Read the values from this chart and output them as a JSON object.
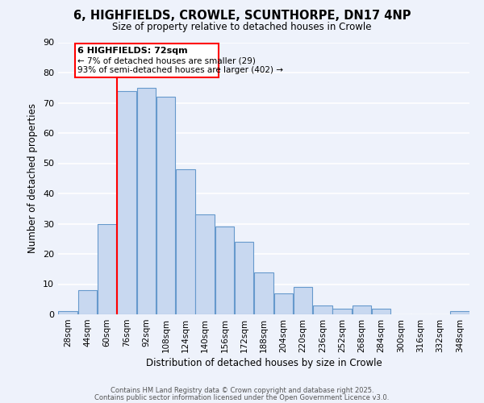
{
  "title_line1": "6, HIGHFIELDS, CROWLE, SCUNTHORPE, DN17 4NP",
  "title_line2": "Size of property relative to detached houses in Crowle",
  "xlabel": "Distribution of detached houses by size in Crowle",
  "ylabel": "Number of detached properties",
  "bar_color": "#c8d8f0",
  "bar_edgecolor": "#6699cc",
  "categories": [
    "28sqm",
    "44sqm",
    "60sqm",
    "76sqm",
    "92sqm",
    "108sqm",
    "124sqm",
    "140sqm",
    "156sqm",
    "172sqm",
    "188sqm",
    "204sqm",
    "220sqm",
    "236sqm",
    "252sqm",
    "268sqm",
    "284sqm",
    "300sqm",
    "316sqm",
    "332sqm",
    "348sqm"
  ],
  "values": [
    1,
    8,
    30,
    74,
    75,
    72,
    48,
    33,
    29,
    24,
    14,
    7,
    9,
    3,
    2,
    3,
    2,
    0,
    0,
    0,
    1
  ],
  "ylim": [
    0,
    90
  ],
  "yticks": [
    0,
    10,
    20,
    30,
    40,
    50,
    60,
    70,
    80,
    90
  ],
  "annotation_line1": "6 HIGHFIELDS: 72sqm",
  "annotation_line2": "← 7% of detached houses are smaller (29)",
  "annotation_line3": "93% of semi-detached houses are larger (402) →",
  "footer_line1": "Contains HM Land Registry data © Crown copyright and database right 2025.",
  "footer_line2": "Contains public sector information licensed under the Open Government Licence v3.0.",
  "bg_color": "#eef2fb",
  "grid_color": "#ffffff"
}
